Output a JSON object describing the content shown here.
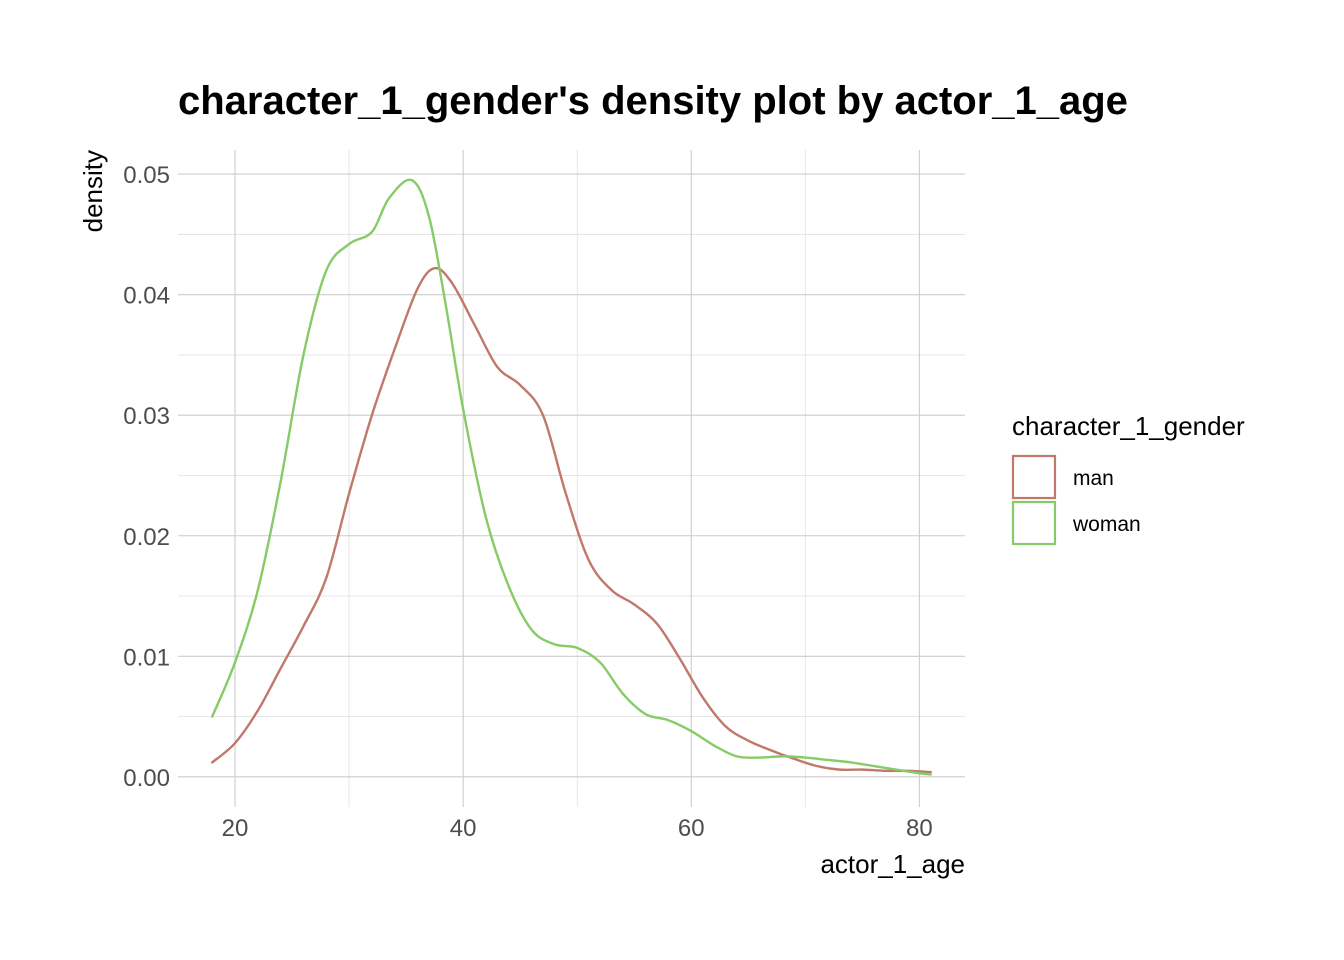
{
  "chart_data": {
    "type": "line",
    "title": "character_1_gender's density plot by actor_1_age",
    "xlabel": "actor_1_age",
    "ylabel": "density",
    "xlim": [
      15,
      84
    ],
    "ylim": [
      -0.0025,
      0.052
    ],
    "x_ticks": [
      20,
      40,
      60,
      80
    ],
    "x_tick_labels": [
      "20",
      "40",
      "60",
      "80"
    ],
    "y_ticks": [
      0,
      0.01,
      0.02,
      0.03,
      0.04,
      0.05
    ],
    "y_tick_labels": [
      "0.00",
      "0.01",
      "0.02",
      "0.03",
      "0.04",
      "0.05"
    ],
    "grid": true,
    "legend": {
      "title": "character_1_gender",
      "position": "right",
      "entries": [
        "man",
        "woman"
      ]
    },
    "series": [
      {
        "name": "man",
        "color": "#c0786a",
        "x": [
          18,
          20,
          22,
          24,
          26,
          28,
          30,
          32,
          34,
          36,
          37.5,
          39,
          41,
          43,
          45,
          47,
          49,
          51,
          53,
          55,
          57,
          59,
          61,
          63,
          65,
          67,
          69,
          71,
          73,
          75,
          77,
          79,
          81
        ],
        "y": [
          0.0012,
          0.0028,
          0.0055,
          0.009,
          0.0125,
          0.0165,
          0.0235,
          0.03,
          0.0355,
          0.0405,
          0.0422,
          0.041,
          0.0375,
          0.034,
          0.0325,
          0.03,
          0.0235,
          0.018,
          0.0155,
          0.0143,
          0.0127,
          0.0098,
          0.0066,
          0.0042,
          0.003,
          0.0022,
          0.0015,
          0.0009,
          0.0006,
          0.0006,
          0.0005,
          0.0005,
          0.0004
        ]
      },
      {
        "name": "woman",
        "color": "#86cb66",
        "x": [
          18,
          20,
          22,
          24,
          26,
          28,
          30,
          32,
          33.5,
          35.5,
          37,
          38.5,
          40,
          42,
          44,
          46,
          48,
          50,
          52,
          54,
          56,
          58,
          60,
          62,
          64,
          66,
          68,
          70,
          72,
          74,
          76,
          78,
          80,
          81
        ],
        "y": [
          0.005,
          0.0095,
          0.0155,
          0.0245,
          0.035,
          0.042,
          0.0442,
          0.0452,
          0.048,
          0.0495,
          0.0465,
          0.039,
          0.0305,
          0.0215,
          0.0158,
          0.0122,
          0.011,
          0.0107,
          0.0095,
          0.0069,
          0.0052,
          0.0047,
          0.0038,
          0.0026,
          0.0017,
          0.0016,
          0.0017,
          0.0016,
          0.0014,
          0.0012,
          0.0009,
          0.0006,
          0.0003,
          0.0002
        ]
      }
    ]
  }
}
